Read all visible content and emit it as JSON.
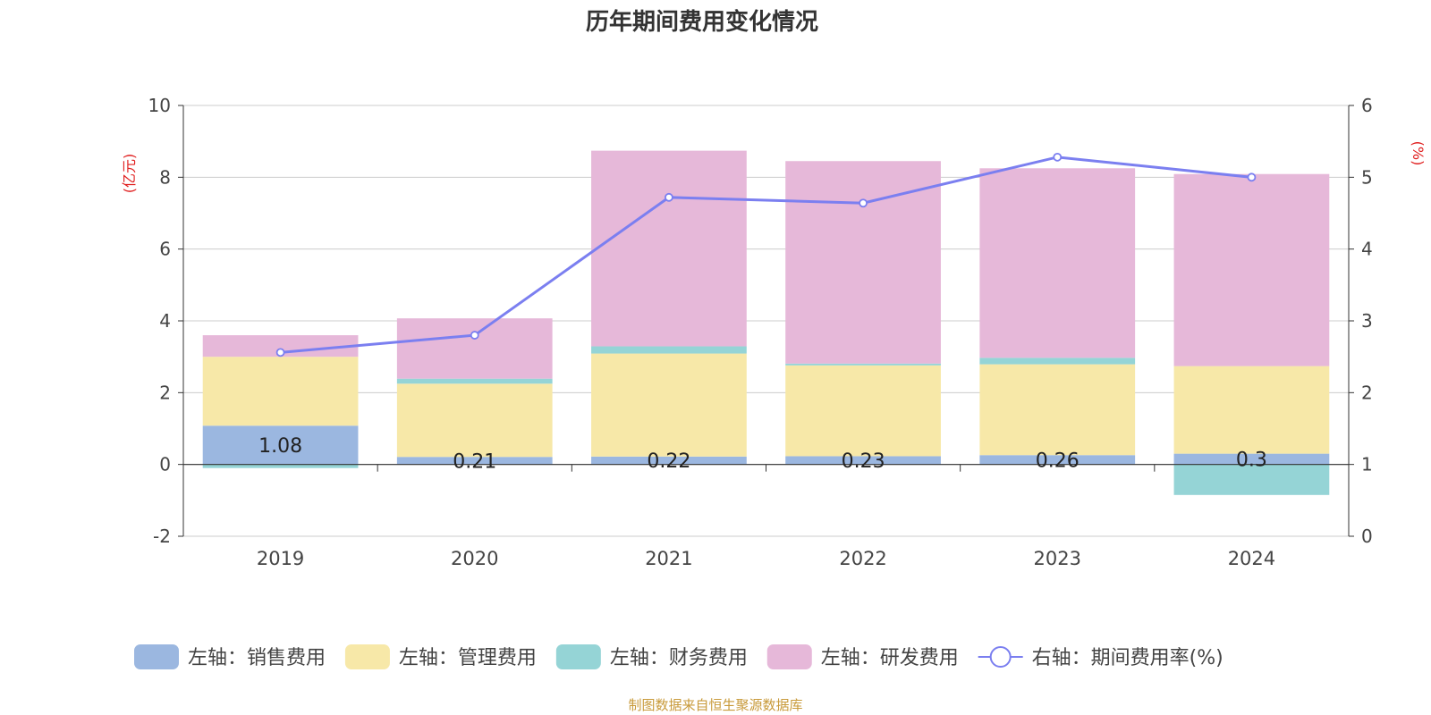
{
  "chart_data": {
    "type": "bar",
    "stacked": true,
    "title": "历年期间费用变化情况",
    "categories": [
      "2019",
      "2020",
      "2021",
      "2022",
      "2023",
      "2024"
    ],
    "left_axis": {
      "unit_label": "(亿元)",
      "ylim": [
        -2,
        10
      ],
      "ticks": [
        "-2",
        "0",
        "2",
        "4",
        "6",
        "8",
        "10"
      ]
    },
    "right_axis": {
      "unit_label": "(%)",
      "ylim": [
        0,
        6
      ],
      "ticks": [
        "0",
        "1",
        "2",
        "3",
        "4",
        "5",
        "6"
      ]
    },
    "series": [
      {
        "name": "左轴：销售费用",
        "axis": "left",
        "color": "#9bb7e0",
        "values": [
          1.08,
          0.21,
          0.22,
          0.23,
          0.26,
          0.3
        ],
        "labels": [
          "1.08",
          "0.21",
          "0.22",
          "0.23",
          "0.26",
          "0.3"
        ]
      },
      {
        "name": "左轴：管理费用",
        "axis": "left",
        "color": "#f7e8a8",
        "values": [
          1.92,
          2.04,
          2.87,
          2.53,
          2.53,
          2.44
        ]
      },
      {
        "name": "左轴：财务费用",
        "axis": "left",
        "color": "#95d4d6",
        "values": [
          -0.1,
          0.14,
          0.2,
          0.05,
          0.18,
          -0.85
        ]
      },
      {
        "name": "左轴：研发费用",
        "axis": "left",
        "color": "#e6b8d9",
        "values": [
          0.6,
          1.68,
          5.45,
          5.64,
          5.28,
          5.35
        ]
      }
    ],
    "line": {
      "name": "右轴：期间费用率(%)",
      "axis": "right",
      "color": "#7b7ff0",
      "values": [
        2.56,
        2.8,
        4.72,
        4.64,
        5.28,
        5.0
      ]
    },
    "legend_position": "bottom",
    "grid": true
  },
  "footer": {
    "source": "制图数据来自恒生聚源数据库"
  }
}
